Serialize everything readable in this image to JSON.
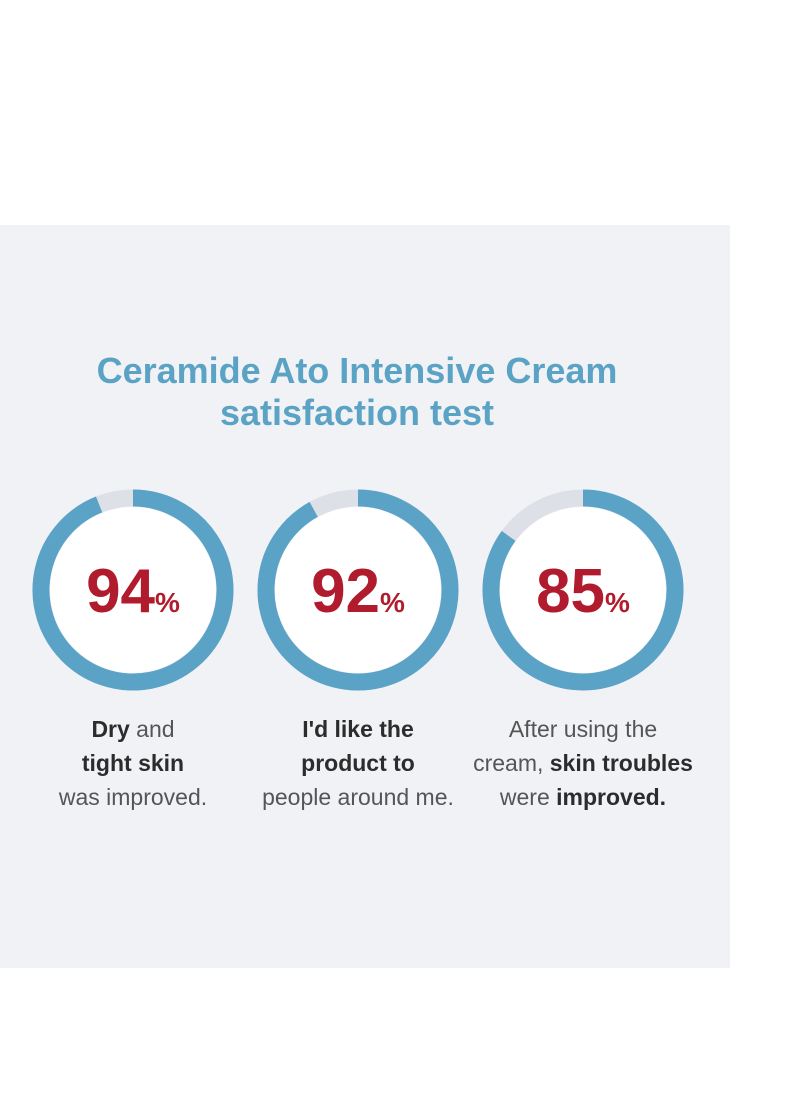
{
  "chart_data": {
    "type": "gauge",
    "title": [
      "Ceramide Ato Intensive Cream",
      "satisfaction test"
    ],
    "values": [
      94,
      92,
      85
    ],
    "unit": "%",
    "ylim": [
      0,
      100
    ],
    "color": "#5aa3c6",
    "track_color": "#dde0e7",
    "value_color": "#b01c2e",
    "title_color": "#5ba3c4",
    "captions": [
      [
        [
          {
            "text": "Dry",
            "bold": true
          },
          {
            "text": " and"
          }
        ],
        [
          {
            "text": "tight skin",
            "bold": true
          }
        ],
        [
          {
            "text": "was improved."
          }
        ]
      ],
      [
        [
          {
            "text": "I'd like the",
            "bold": true
          }
        ],
        [
          {
            "text": "product to",
            "bold": true
          }
        ],
        [
          {
            "text": "people around me."
          }
        ]
      ],
      [
        [
          {
            "text": "After using the"
          }
        ],
        [
          {
            "text": "cream, "
          },
          {
            "text": "skin troubles",
            "bold": true
          }
        ],
        [
          {
            "text": "were "
          },
          {
            "text": "improved.",
            "bold": true
          }
        ]
      ]
    ]
  }
}
